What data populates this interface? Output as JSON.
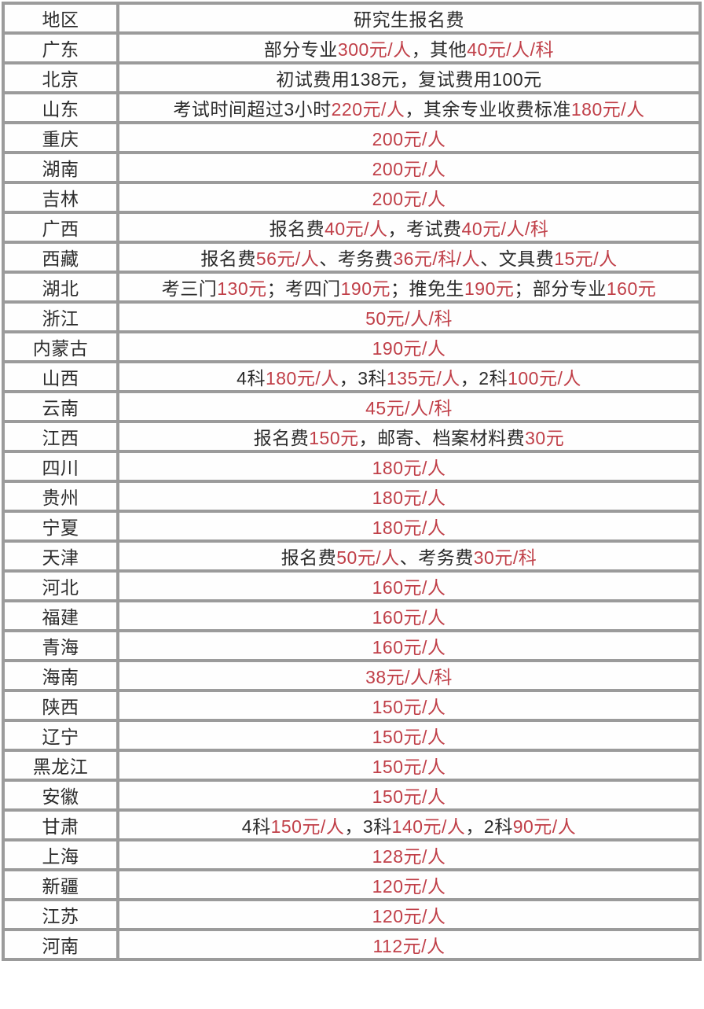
{
  "colors": {
    "red": "#c03f48",
    "black": "#2b2b2b",
    "grid_border": "#9b9b9b",
    "cell_background": "#fefefe"
  },
  "table": {
    "header": {
      "region_label": "地区",
      "fee_label": "研究生报名费"
    },
    "rows": [
      {
        "region": "广东",
        "fee_segments": [
          {
            "text": "部分专业",
            "red": false
          },
          {
            "text": "300元/人",
            "red": true
          },
          {
            "text": "，其他",
            "red": false
          },
          {
            "text": "40元/人/科",
            "red": true
          }
        ]
      },
      {
        "region": "北京",
        "fee_segments": [
          {
            "text": "初试费用138元，复试费用100元",
            "red": false
          }
        ]
      },
      {
        "region": "山东",
        "fee_segments": [
          {
            "text": "考试时间超过3小时",
            "red": false
          },
          {
            "text": "220元/人",
            "red": true
          },
          {
            "text": "，其余专业收费标准",
            "red": false
          },
          {
            "text": "180元/人",
            "red": true
          }
        ]
      },
      {
        "region": "重庆",
        "fee_segments": [
          {
            "text": "200元/人",
            "red": true
          }
        ]
      },
      {
        "region": "湖南",
        "fee_segments": [
          {
            "text": "200元/人",
            "red": true
          }
        ]
      },
      {
        "region": "吉林",
        "fee_segments": [
          {
            "text": "200元/人",
            "red": true
          }
        ]
      },
      {
        "region": "广西",
        "fee_segments": [
          {
            "text": "报名费",
            "red": false
          },
          {
            "text": "40元/人",
            "red": true
          },
          {
            "text": "，考试费",
            "red": false
          },
          {
            "text": "40元/人/科",
            "red": true
          }
        ]
      },
      {
        "region": "西藏",
        "fee_segments": [
          {
            "text": "报名费",
            "red": false
          },
          {
            "text": "56元/人",
            "red": true
          },
          {
            "text": "、考务费",
            "red": false
          },
          {
            "text": "36元/科/人",
            "red": true
          },
          {
            "text": "、文具费",
            "red": false
          },
          {
            "text": "15元/人",
            "red": true
          }
        ]
      },
      {
        "region": "湖北",
        "fee_segments": [
          {
            "text": "考三门",
            "red": false
          },
          {
            "text": "130元",
            "red": true
          },
          {
            "text": "；考四门",
            "red": false
          },
          {
            "text": "190元",
            "red": true
          },
          {
            "text": "；推免生",
            "red": false
          },
          {
            "text": "190元",
            "red": true
          },
          {
            "text": "；部分专业",
            "red": false
          },
          {
            "text": "160元",
            "red": true
          }
        ]
      },
      {
        "region": "浙江",
        "fee_segments": [
          {
            "text": "50元/人/科",
            "red": true
          }
        ]
      },
      {
        "region": "内蒙古",
        "fee_segments": [
          {
            "text": "190元/人",
            "red": true
          }
        ]
      },
      {
        "region": "山西",
        "fee_segments": [
          {
            "text": "4科",
            "red": false
          },
          {
            "text": "180元/人",
            "red": true
          },
          {
            "text": "，3科",
            "red": false
          },
          {
            "text": "135元/人",
            "red": true
          },
          {
            "text": "，2科",
            "red": false
          },
          {
            "text": "100元/人",
            "red": true
          }
        ]
      },
      {
        "region": "云南",
        "fee_segments": [
          {
            "text": "45元/人/科",
            "red": true
          }
        ]
      },
      {
        "region": "江西",
        "fee_segments": [
          {
            "text": "报名费",
            "red": false
          },
          {
            "text": "150元",
            "red": true
          },
          {
            "text": "，邮寄、档案材料费",
            "red": false
          },
          {
            "text": "30元",
            "red": true
          }
        ]
      },
      {
        "region": "四川",
        "fee_segments": [
          {
            "text": "180元/人",
            "red": true
          }
        ]
      },
      {
        "region": "贵州",
        "fee_segments": [
          {
            "text": "180元/人",
            "red": true
          }
        ]
      },
      {
        "region": "宁夏",
        "fee_segments": [
          {
            "text": "180元/人",
            "red": true
          }
        ]
      },
      {
        "region": "天津",
        "fee_segments": [
          {
            "text": "报名费",
            "red": false
          },
          {
            "text": "50元/人",
            "red": true
          },
          {
            "text": "、考务费",
            "red": false
          },
          {
            "text": "30元/科",
            "red": true
          }
        ]
      },
      {
        "region": "河北",
        "fee_segments": [
          {
            "text": "160元/人",
            "red": true
          }
        ]
      },
      {
        "region": "福建",
        "fee_segments": [
          {
            "text": "160元/人",
            "red": true
          }
        ]
      },
      {
        "region": "青海",
        "fee_segments": [
          {
            "text": "160元/人",
            "red": true
          }
        ]
      },
      {
        "region": "海南",
        "fee_segments": [
          {
            "text": "38元/人/科",
            "red": true
          }
        ]
      },
      {
        "region": "陕西",
        "fee_segments": [
          {
            "text": "150元/人",
            "red": true
          }
        ]
      },
      {
        "region": "辽宁",
        "fee_segments": [
          {
            "text": "150元/人",
            "red": true
          }
        ]
      },
      {
        "region": "黑龙江",
        "fee_segments": [
          {
            "text": "150元/人",
            "red": true
          }
        ]
      },
      {
        "region": "安徽",
        "fee_segments": [
          {
            "text": "150元/人",
            "red": true
          }
        ]
      },
      {
        "region": "甘肃",
        "fee_segments": [
          {
            "text": "4科",
            "red": false
          },
          {
            "text": "150元/人",
            "red": true
          },
          {
            "text": "，3科",
            "red": false
          },
          {
            "text": "140元/人",
            "red": true
          },
          {
            "text": "，2科",
            "red": false
          },
          {
            "text": "90元/人",
            "red": true
          }
        ]
      },
      {
        "region": "上海",
        "fee_segments": [
          {
            "text": "128元/人",
            "red": true
          }
        ]
      },
      {
        "region": "新疆",
        "fee_segments": [
          {
            "text": "120元/人",
            "red": true
          }
        ]
      },
      {
        "region": "江苏",
        "fee_segments": [
          {
            "text": "120元/人",
            "red": true
          }
        ]
      },
      {
        "region": "河南",
        "fee_segments": [
          {
            "text": "112元/人",
            "red": true
          }
        ]
      }
    ]
  }
}
